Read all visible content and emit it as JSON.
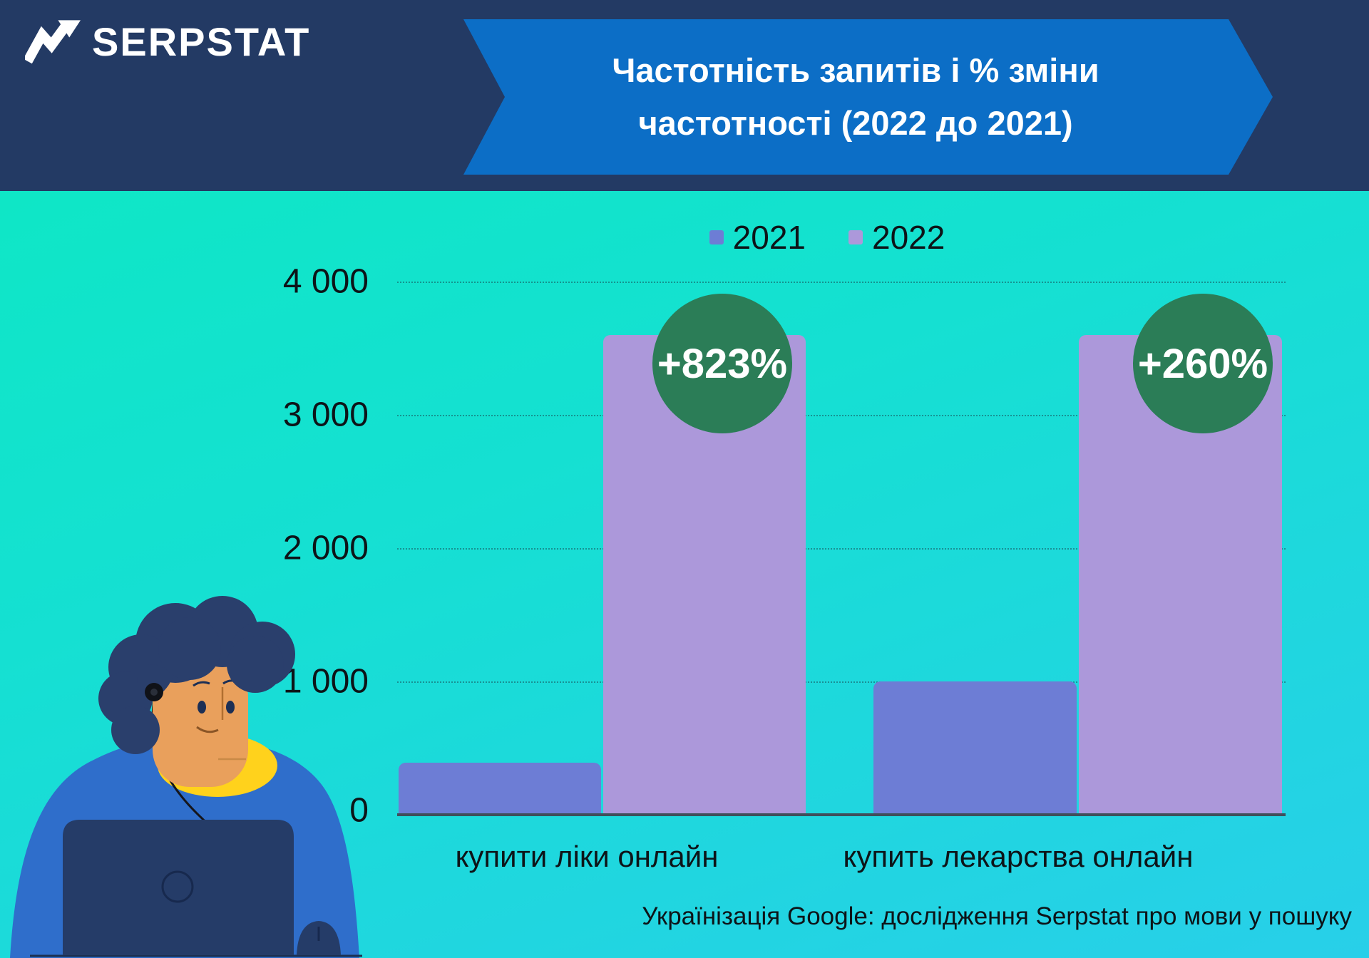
{
  "header": {
    "logo_text": "SERPSTAT",
    "title_line1": "Частотність запитів і % зміни",
    "title_line2": "частотності (2022 до 2021)"
  },
  "chart_data": {
    "type": "bar",
    "categories": [
      "купити ліки онлайн",
      "купить лекарства онлайн"
    ],
    "series": [
      {
        "name": "2021",
        "color": "#6d7dd5",
        "values": [
          390,
          1000
        ]
      },
      {
        "name": "2022",
        "color": "#ac98da",
        "values": [
          3600,
          3600
        ]
      }
    ],
    "badges": [
      "+823%",
      "+260%"
    ],
    "ylim": [
      0,
      4000
    ],
    "yticks": [
      {
        "value": 0,
        "label": "0"
      },
      {
        "value": 1000,
        "label": "1 000"
      },
      {
        "value": 2000,
        "label": "2 000"
      },
      {
        "value": 3000,
        "label": "3 000"
      },
      {
        "value": 4000,
        "label": "4 000"
      }
    ],
    "grid": true,
    "legend_position": "top"
  },
  "caption": "Українізація Google: дослідження Serpstat про мови у пошуку",
  "colors": {
    "header_bg": "#233a64",
    "banner_blue": "#0c6ec6",
    "badge_green": "#2b7d57",
    "bg_teal_top": "#0ce9c1",
    "bg_teal_bottom": "#28cfe9"
  }
}
